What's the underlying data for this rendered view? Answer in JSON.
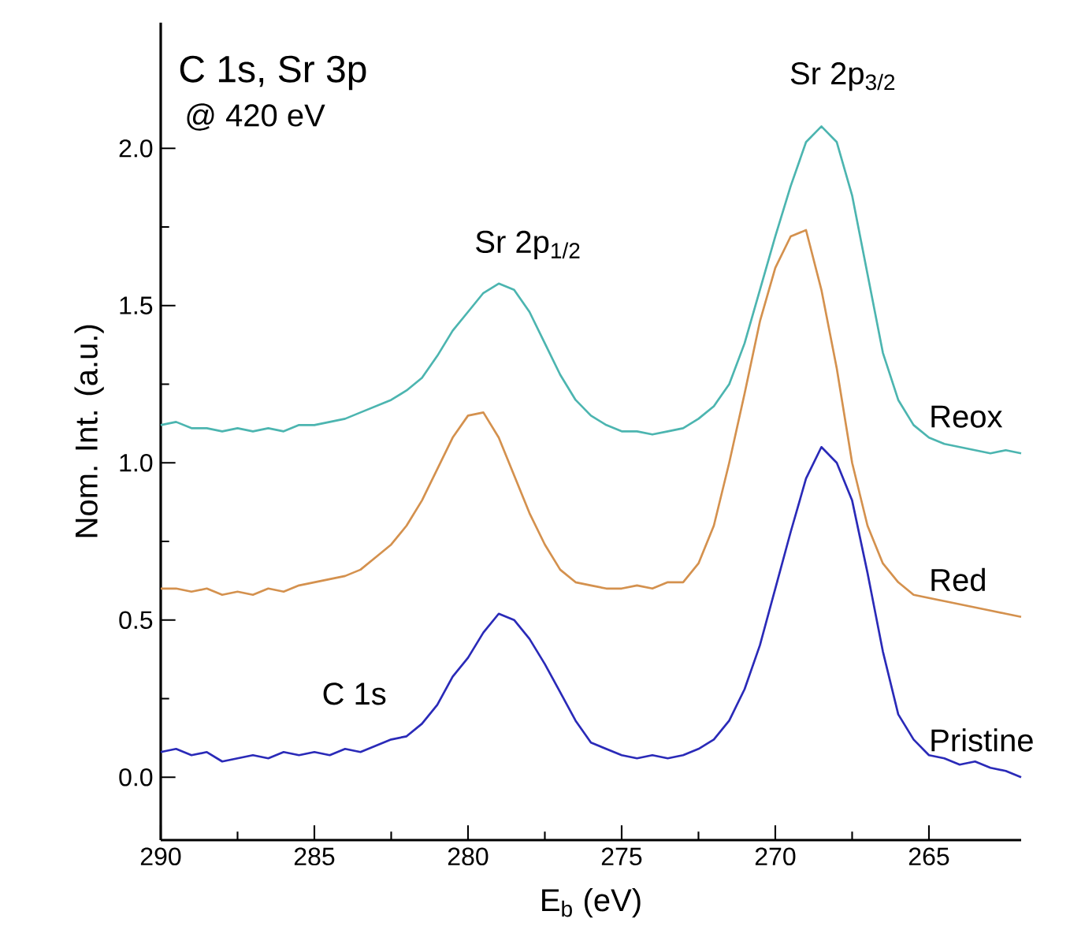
{
  "chart_data": {
    "type": "line",
    "title": "C 1s, Sr 3p",
    "subtitle": "@ 420 eV",
    "xlabel": "E$_{b}$ (eV)",
    "ylabel": "Nom. Int. (a.u.)",
    "x": [
      290,
      289.5,
      289,
      288.5,
      288,
      287.5,
      287,
      286.5,
      286,
      285.5,
      285,
      284.5,
      284,
      283.5,
      283,
      282.5,
      282,
      281.5,
      281,
      280.5,
      280,
      279.5,
      279,
      278.5,
      278,
      277.5,
      277,
      276.5,
      276,
      275.5,
      275,
      274.5,
      274,
      273.5,
      273,
      272.5,
      272,
      271.5,
      271,
      270.5,
      270,
      269.5,
      269,
      268.5,
      268,
      267.5,
      267,
      266.5,
      266,
      265.5,
      265,
      264.5,
      264,
      263.5,
      263,
      262.5,
      262
    ],
    "series": [
      {
        "name": "Reox",
        "color": "#4cb5b0",
        "values": [
          1.12,
          1.13,
          1.11,
          1.11,
          1.1,
          1.11,
          1.1,
          1.11,
          1.1,
          1.12,
          1.12,
          1.13,
          1.14,
          1.16,
          1.18,
          1.2,
          1.23,
          1.27,
          1.34,
          1.42,
          1.48,
          1.54,
          1.57,
          1.55,
          1.48,
          1.38,
          1.28,
          1.2,
          1.15,
          1.12,
          1.1,
          1.1,
          1.09,
          1.1,
          1.11,
          1.14,
          1.18,
          1.25,
          1.38,
          1.55,
          1.72,
          1.88,
          2.02,
          2.07,
          2.02,
          1.85,
          1.6,
          1.35,
          1.2,
          1.12,
          1.08,
          1.06,
          1.05,
          1.04,
          1.03,
          1.04,
          1.03
        ]
      },
      {
        "name": "Red",
        "color": "#d4914e",
        "values": [
          0.6,
          0.6,
          0.59,
          0.6,
          0.58,
          0.59,
          0.58,
          0.6,
          0.59,
          0.61,
          0.62,
          0.63,
          0.64,
          0.66,
          0.7,
          0.74,
          0.8,
          0.88,
          0.98,
          1.08,
          1.15,
          1.16,
          1.08,
          0.96,
          0.84,
          0.74,
          0.66,
          0.62,
          0.61,
          0.6,
          0.6,
          0.61,
          0.6,
          0.62,
          0.62,
          0.68,
          0.8,
          1.0,
          1.22,
          1.45,
          1.62,
          1.72,
          1.74,
          1.55,
          1.3,
          1.0,
          0.8,
          0.68,
          0.62,
          0.58,
          0.57,
          0.56,
          0.55,
          0.54,
          0.53,
          0.52,
          0.51
        ]
      },
      {
        "name": "Pristine",
        "color": "#2a2ab8",
        "values": [
          0.08,
          0.09,
          0.07,
          0.08,
          0.05,
          0.06,
          0.07,
          0.06,
          0.08,
          0.07,
          0.08,
          0.07,
          0.09,
          0.08,
          0.1,
          0.12,
          0.13,
          0.17,
          0.23,
          0.32,
          0.38,
          0.46,
          0.52,
          0.5,
          0.44,
          0.36,
          0.27,
          0.18,
          0.11,
          0.09,
          0.07,
          0.06,
          0.07,
          0.06,
          0.07,
          0.09,
          0.12,
          0.18,
          0.28,
          0.42,
          0.6,
          0.78,
          0.95,
          1.05,
          1.0,
          0.88,
          0.65,
          0.4,
          0.2,
          0.12,
          0.07,
          0.06,
          0.04,
          0.05,
          0.03,
          0.02,
          0.0
        ]
      }
    ],
    "annotations": [
      "Sr 2p$_{1/2}$",
      "Sr 2p$_{3/2}$",
      "C 1s"
    ],
    "xlim": [
      290,
      262
    ],
    "ylim": [
      -0.2,
      2.4
    ],
    "xticks": [
      290,
      285,
      280,
      275,
      270,
      265
    ],
    "yticks": [
      {
        "value": 0,
        "label": "0.0"
      },
      {
        "value": 0.5,
        "label": "0.5"
      },
      {
        "value": 1,
        "label": "1.0"
      },
      {
        "value": 1.5,
        "label": "1.5"
      },
      {
        "value": 2,
        "label": "2.0"
      }
    ],
    "grid": false,
    "legend": false,
    "marker": "none",
    "line_style": "solid"
  }
}
